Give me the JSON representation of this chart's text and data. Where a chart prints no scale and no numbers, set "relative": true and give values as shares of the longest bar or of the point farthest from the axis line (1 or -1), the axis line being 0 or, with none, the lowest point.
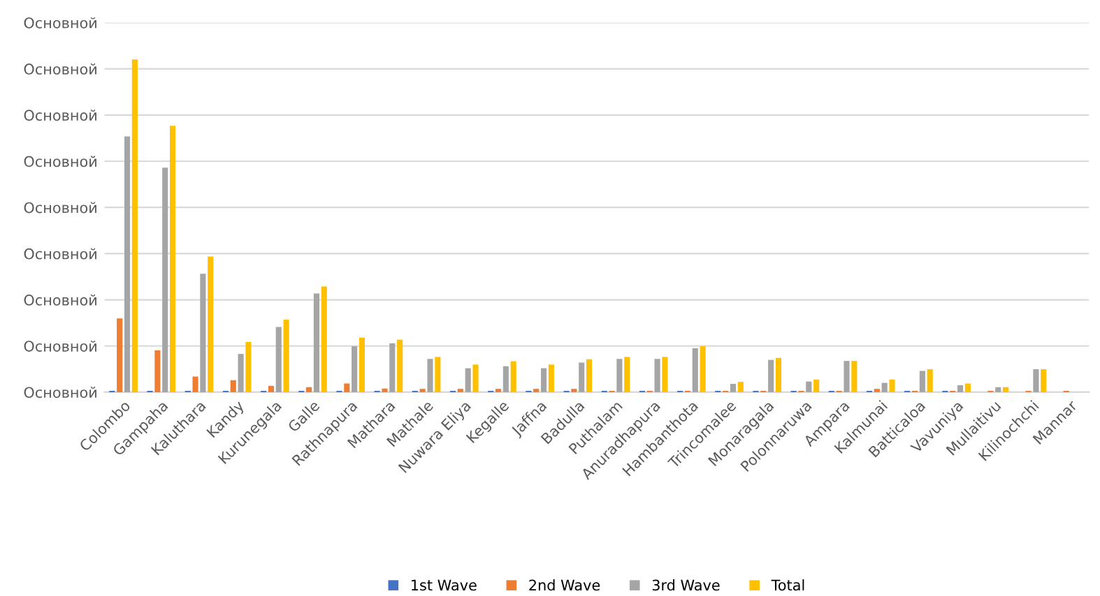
{
  "chart_data": {
    "type": "bar",
    "relative": true,
    "categories": [
      "Colombo",
      "Gampaha",
      "Kaluthara",
      "Kandy",
      "Kurunegala",
      "Galle",
      "Rathnapura",
      "Mathara",
      "Mathale",
      "Nuwara Eliya",
      "Kegalle",
      "Jaffna",
      "Badulla",
      "Puthalam",
      "Anuradhapura",
      "Hambanthota",
      "Trincomalee",
      "Monaragala",
      "Polonnaruwa",
      "Ampara",
      "Kalmunai",
      "Batticaloa",
      "Vavuniya",
      "Mullaitivu",
      "Kilinochchi",
      "Mannar"
    ],
    "series": [
      {
        "name": "1st Wave",
        "color": "#4472c4",
        "values": [
          0.004,
          0.004,
          0.004,
          0.004,
          0.004,
          0.004,
          0.004,
          0.004,
          0.004,
          0.004,
          0.004,
          0.004,
          0.004,
          0.004,
          0.004,
          0.004,
          0.004,
          0.004,
          0.004,
          0.004,
          0.004,
          0.004,
          0.004,
          0,
          0,
          0
        ]
      },
      {
        "name": "2nd Wave",
        "color": "#ed7d31",
        "values": [
          0.222,
          0.126,
          0.047,
          0.036,
          0.019,
          0.015,
          0.026,
          0.011,
          0.01,
          0.01,
          0.01,
          0.01,
          0.01,
          0.004,
          0.004,
          0.004,
          0.004,
          0.004,
          0.004,
          0.004,
          0.01,
          0.004,
          0.004,
          0.004,
          0.004,
          0.004
        ]
      },
      {
        "name": "3rd Wave",
        "color": "#a5a5a5",
        "values": [
          0.769,
          0.675,
          0.356,
          0.115,
          0.196,
          0.297,
          0.138,
          0.147,
          0.1,
          0.072,
          0.078,
          0.072,
          0.089,
          0.1,
          0.1,
          0.132,
          0.025,
          0.097,
          0.032,
          0.094,
          0.028,
          0.064,
          0.021,
          0.015,
          0.069,
          0
        ]
      },
      {
        "name": "Total",
        "color": "#ffc000",
        "values": [
          1,
          0.801,
          0.408,
          0.151,
          0.218,
          0.318,
          0.164,
          0.158,
          0.106,
          0.083,
          0.093,
          0.083,
          0.099,
          0.106,
          0.106,
          0.138,
          0.031,
          0.103,
          0.038,
          0.094,
          0.038,
          0.069,
          0.026,
          0.015,
          0.069,
          0
        ]
      }
    ],
    "annotations": [
      "Основной",
      "Основной",
      "Основной",
      "Основной",
      "Основной",
      "Основной",
      "Основной",
      "Основной",
      "Основной"
    ],
    "ylim": [
      0,
      1.111
    ],
    "grid": "y",
    "legend": "bottom"
  }
}
